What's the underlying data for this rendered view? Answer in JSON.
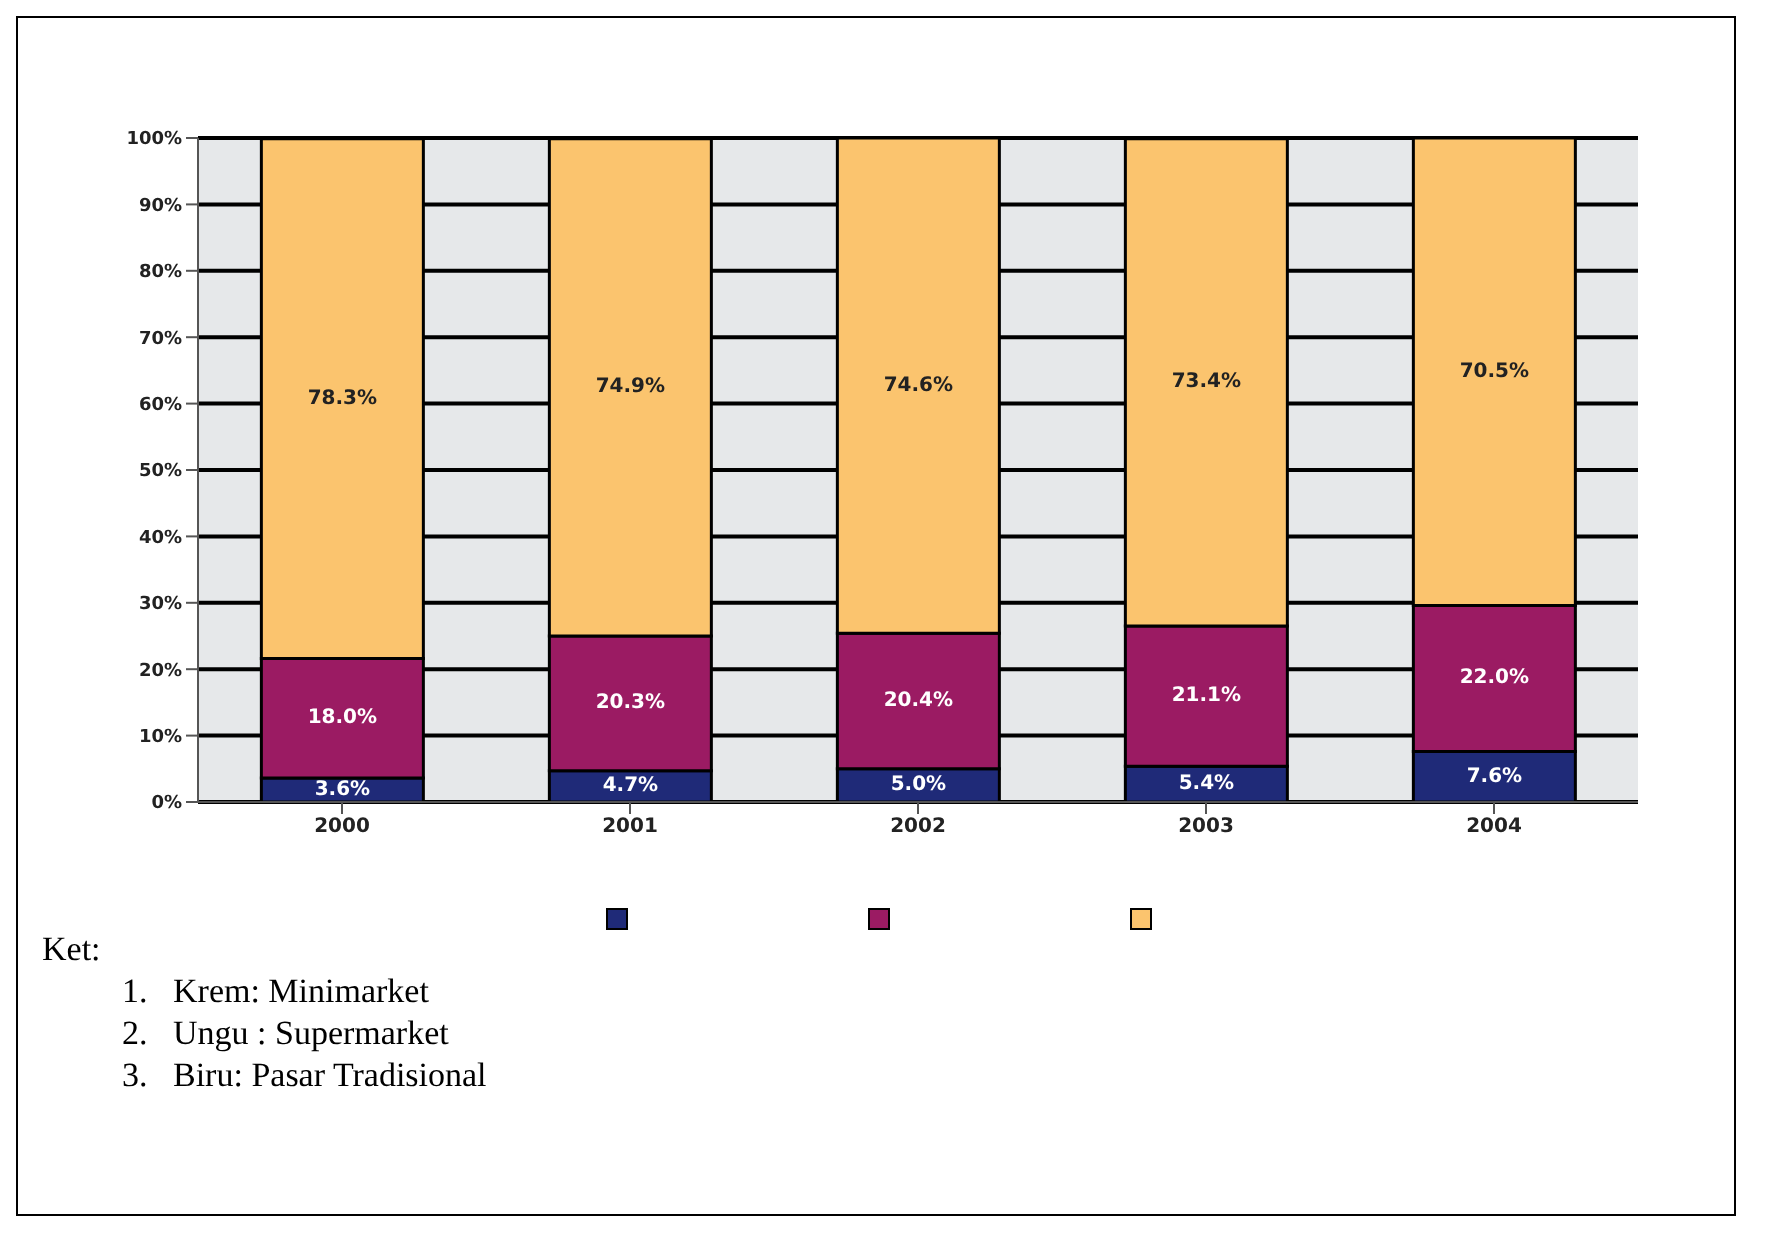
{
  "chart_data": {
    "type": "bar",
    "stacked": true,
    "categories": [
      "2000",
      "2001",
      "2002",
      "2003",
      "2004"
    ],
    "series": [
      {
        "color": "#1f2a78",
        "values": [
          3.6,
          4.7,
          5.0,
          5.4,
          7.6
        ],
        "value_labels": [
          "3.6%",
          "4.7%",
          "5.0%",
          "5.4%",
          "7.6%"
        ]
      },
      {
        "color": "#9b1b63",
        "values": [
          18.0,
          20.3,
          20.4,
          21.1,
          22.0
        ],
        "value_labels": [
          "18.0%",
          "20.3%",
          "20.4%",
          "21.1%",
          "22.0%"
        ]
      },
      {
        "color": "#fbc46e",
        "values": [
          78.3,
          74.9,
          74.6,
          73.4,
          70.5
        ],
        "value_labels": [
          "78.3%",
          "74.9%",
          "74.6%",
          "73.4%",
          "70.5%"
        ]
      }
    ],
    "ylim": [
      0,
      100
    ],
    "yticks": [
      {
        "value": 0,
        "label": "0%"
      },
      {
        "value": 10,
        "label": "10%"
      },
      {
        "value": 20,
        "label": "20%"
      },
      {
        "value": 30,
        "label": "30%"
      },
      {
        "value": 40,
        "label": "40%"
      },
      {
        "value": 50,
        "label": "50%"
      },
      {
        "value": 60,
        "label": "60%"
      },
      {
        "value": 70,
        "label": "70%"
      },
      {
        "value": 80,
        "label": "80%"
      },
      {
        "value": 90,
        "label": "90%"
      },
      {
        "value": 100,
        "label": "100%"
      }
    ],
    "grid": "y",
    "annotations": [
      "Ket:",
      "1.   Krem: Minimarket",
      "2.   Ungu : Supermarket",
      "3.   Biru: Pasar Tradisional"
    ]
  }
}
